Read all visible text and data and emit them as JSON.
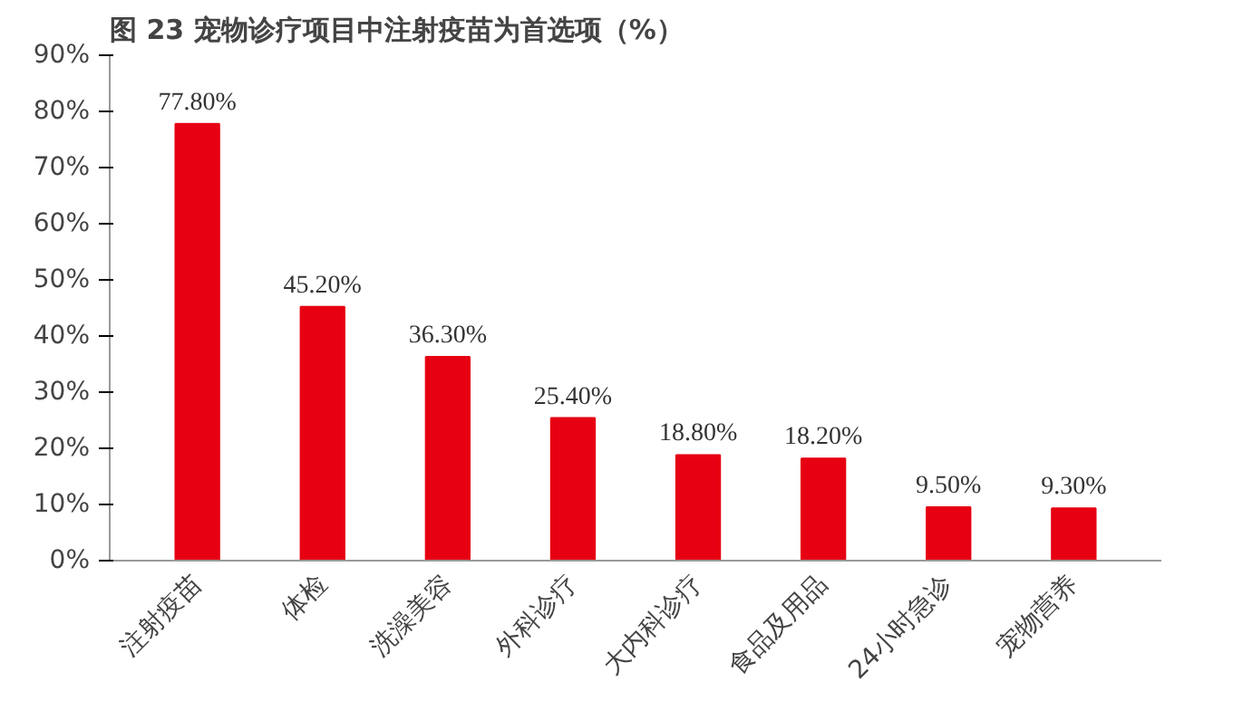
{
  "chart_data": {
    "type": "bar",
    "title": "图 23  宠物诊疗项目中注射疫苗为首选项（%）",
    "categories": [
      "注射疫苗",
      "体检",
      "洗澡美容",
      "外科诊疗",
      "大内科诊疗",
      "食品及用品",
      "24小时急诊",
      "宠物营养"
    ],
    "values": [
      77.8,
      45.2,
      36.3,
      25.4,
      18.8,
      18.2,
      9.5,
      9.3
    ],
    "value_labels": [
      "77.80%",
      "45.20%",
      "36.30%",
      "25.40%",
      "18.80%",
      "18.20%",
      "9.50%",
      "9.30%"
    ],
    "color": "#e60012",
    "ylim": [
      0,
      90
    ],
    "yticks": [
      {
        "value": 0,
        "label": "0%"
      },
      {
        "value": 10,
        "label": "10%"
      },
      {
        "value": 20,
        "label": "20%"
      },
      {
        "value": 30,
        "label": "30%"
      },
      {
        "value": 40,
        "label": "40%"
      },
      {
        "value": 50,
        "label": "50%"
      },
      {
        "value": 60,
        "label": "60%"
      },
      {
        "value": 70,
        "label": "70%"
      },
      {
        "value": 80,
        "label": "80%"
      },
      {
        "value": 90,
        "label": "90%"
      }
    ],
    "grid": false
  }
}
